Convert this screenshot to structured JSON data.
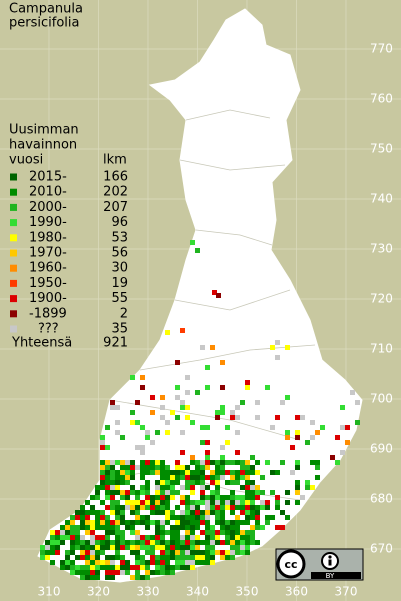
{
  "title": [
    "Campanula",
    "persicifolia"
  ],
  "legend": {
    "header": [
      "Uusimman",
      "havainnon",
      "vuosi"
    ],
    "count_header": "lkm",
    "items": [
      {
        "label": "2015-",
        "count": 166,
        "color": "#006400"
      },
      {
        "label": "2010-",
        "count": 202,
        "color": "#008c00"
      },
      {
        "label": "2000-",
        "count": 207,
        "color": "#1fb41f"
      },
      {
        "label": "1990-",
        "count": 96,
        "color": "#33dd33"
      },
      {
        "label": "1980-",
        "count": 53,
        "color": "#ffff00"
      },
      {
        "label": "1970-",
        "count": 56,
        "color": "#ffc800"
      },
      {
        "label": "1960-",
        "count": 30,
        "color": "#ff8c00"
      },
      {
        "label": "1950-",
        "count": 19,
        "color": "#ff3c00"
      },
      {
        "label": "1900-",
        "count": 55,
        "color": "#dc0000"
      },
      {
        "label": "-1899",
        "count": 2,
        "color": "#8c0000"
      },
      {
        "label": "???",
        "count": 35,
        "color": "#c8c8c8"
      }
    ],
    "total_label": "Yhteensä",
    "total": 921
  },
  "x_labels": [
    310,
    320,
    330,
    340,
    350,
    360,
    370
  ],
  "y_labels": [
    670,
    680,
    690,
    700,
    710,
    720,
    730,
    740,
    750,
    760,
    770
  ],
  "license": {
    "cc": "cc",
    "by": "BY"
  }
}
